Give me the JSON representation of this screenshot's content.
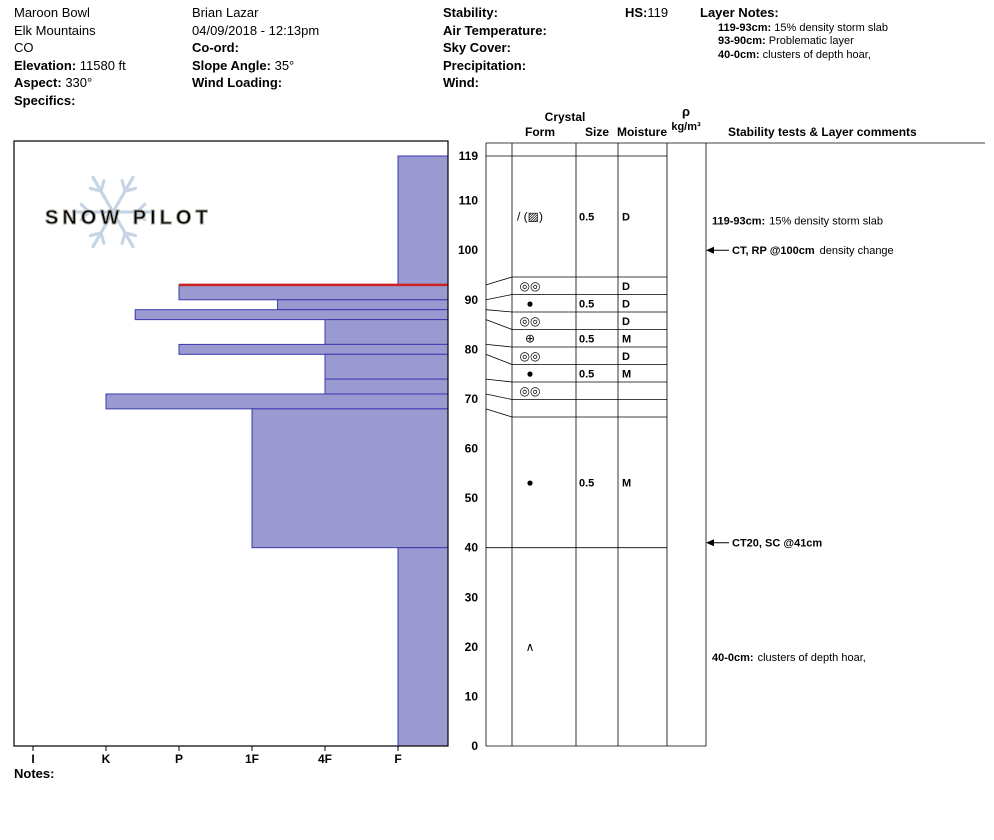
{
  "header": {
    "location": {
      "site": "Maroon Bowl",
      "range": "Elk Mountains",
      "state": "CO",
      "elevation_label": "Elevation:",
      "elevation_value": "11580 ft",
      "aspect_label": "Aspect:",
      "aspect_value": "330°",
      "specifics_label": "Specifics:",
      "specifics_value": ""
    },
    "observation": {
      "observer": "Brian Lazar",
      "datetime": "04/09/2018 - 12:13pm",
      "coord_label": "Co-ord:",
      "coord_value": "",
      "slope_angle_label": "Slope Angle:",
      "slope_angle_value": "35°",
      "wind_loading_label": "Wind Loading:",
      "wind_loading_value": ""
    },
    "conditions": {
      "stability_label": "Stability:",
      "stability_value": "",
      "air_temp_label": "Air Temperature:",
      "air_temp_value": "",
      "sky_cover_label": "Sky Cover:",
      "sky_cover_value": "",
      "precip_label": "Precipitation:",
      "precip_value": "",
      "wind_label": "Wind:",
      "wind_value": ""
    },
    "hs_label": "HS:",
    "hs_value": "119",
    "layer_notes_title": "Layer Notes:",
    "layer_notes": [
      {
        "range": "119-93cm:",
        "text": "15% density storm slab"
      },
      {
        "range": "93-90cm:",
        "text": "Problematic layer"
      },
      {
        "range": "40-0cm:",
        "text": "clusters of depth hoar,"
      }
    ]
  },
  "footer": {
    "notes_label": "Notes:"
  },
  "chart_data": {
    "type": "snow-profile",
    "watermark_text": "SNOW PILOT",
    "hs_cm": 119,
    "depth_unit": "cm",
    "hardness_axis": [
      "I",
      "K",
      "P",
      "1F",
      "4F",
      "F"
    ],
    "depth_ticks": [
      119,
      110,
      100,
      90,
      80,
      70,
      60,
      50,
      40,
      30,
      20,
      10,
      0
    ],
    "table_headers": {
      "crystal": "Crystal",
      "form": "Form",
      "size": "Size",
      "moisture": "Moisture",
      "density_symbol": "ρ",
      "density_unit": "kg/m³",
      "tests": "Stability tests & Layer comments"
    },
    "layers": [
      {
        "top_cm": 119,
        "bottom_cm": 93,
        "hardness": "F",
        "hardness_index": 1,
        "form": "/ (▨)",
        "size_mm": "0.5",
        "moisture": "D",
        "flagged": false
      },
      {
        "top_cm": 93,
        "bottom_cm": 90,
        "hardness": "P",
        "hardness_index": 4,
        "form": "◎◎",
        "size_mm": "",
        "moisture": "D",
        "flagged": true
      },
      {
        "top_cm": 90,
        "bottom_cm": 88,
        "hardness": "1F",
        "hardness_index": 2.65,
        "form": "●",
        "size_mm": "0.5",
        "moisture": "D",
        "flagged": false
      },
      {
        "top_cm": 88,
        "bottom_cm": 86,
        "hardness": "K",
        "hardness_index": 4.6,
        "form": "◎◎",
        "size_mm": "",
        "moisture": "D",
        "flagged": false
      },
      {
        "top_cm": 86,
        "bottom_cm": 81,
        "hardness": "4F",
        "hardness_index": 2,
        "form": "⊕",
        "size_mm": "0.5",
        "moisture": "M",
        "flagged": false
      },
      {
        "top_cm": 81,
        "bottom_cm": 79,
        "hardness": "P",
        "hardness_index": 4,
        "form": "◎◎",
        "size_mm": "",
        "moisture": "D",
        "flagged": false
      },
      {
        "top_cm": 79,
        "bottom_cm": 74,
        "hardness": "4F",
        "hardness_index": 2,
        "form": "●",
        "size_mm": "0.5",
        "moisture": "M",
        "flagged": false
      },
      {
        "top_cm": 74,
        "bottom_cm": 71,
        "hardness": "4F",
        "hardness_index": 2,
        "form": "◎◎",
        "size_mm": "",
        "moisture": "",
        "flagged": false
      },
      {
        "top_cm": 71,
        "bottom_cm": 68,
        "hardness": "K",
        "hardness_index": 5,
        "form": "",
        "size_mm": "",
        "moisture": "",
        "flagged": false
      },
      {
        "top_cm": 68,
        "bottom_cm": 40,
        "hardness": "1F",
        "hardness_index": 3,
        "form": "●",
        "size_mm": "0.5",
        "moisture": "M",
        "flagged": false
      },
      {
        "top_cm": 40,
        "bottom_cm": 0,
        "hardness": "F",
        "hardness_index": 1,
        "form": "∧",
        "size_mm": "",
        "moisture": "",
        "flagged": false
      }
    ],
    "stability_tests": [
      {
        "depth_cm": 100,
        "label": "CT, RP @100cm",
        "comment": "density change"
      },
      {
        "depth_cm": 41,
        "label": "CT20, SC @41cm",
        "comment": ""
      }
    ],
    "layer_comments": [
      {
        "depth_cm": 106,
        "range": "119-93cm:",
        "text": "15% density storm slab"
      },
      {
        "depth_cm": 18,
        "range": "40-0cm:",
        "text": "clusters of depth hoar,"
      }
    ],
    "colors": {
      "bar_fill": "#9a9ad0",
      "bar_stroke": "#3a3aae",
      "flag_line": "#cc2222",
      "watermark_flake": "#c6d5e6",
      "watermark_text_fill": "#e9e3d4",
      "watermark_text_stroke": "#a3a39b"
    }
  }
}
